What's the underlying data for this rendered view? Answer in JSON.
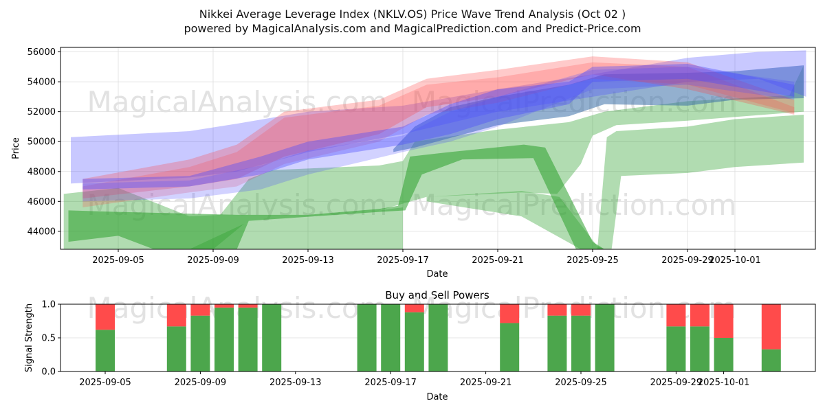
{
  "chart_data": [
    {
      "type": "area",
      "title": "Nikkei Average Leverage Index (NKLV.OS) Price Wave Trend Analysis (Oct 02 )",
      "subtitle": "powered by MagicalAnalysis.com and MagicalPrediction.com and Predict-Price.com",
      "xlabel": "Date",
      "ylabel": "Price",
      "ylim": [
        42800,
        56300
      ],
      "x_origin": "2025-09-05",
      "x_unit": "days since x_origin",
      "xlim": [
        -2.45,
        29.4
      ],
      "xticks": [
        {
          "d": 0,
          "label": "2025-09-05"
        },
        {
          "d": 4,
          "label": "2025-09-09"
        },
        {
          "d": 8,
          "label": "2025-09-13"
        },
        {
          "d": 12,
          "label": "2025-09-17"
        },
        {
          "d": 16,
          "label": "2025-09-21"
        },
        {
          "d": 20,
          "label": "2025-09-25"
        },
        {
          "d": 24,
          "label": "2025-09-29"
        },
        {
          "d": 26,
          "label": "2025-10-01"
        }
      ],
      "yticks": [
        44000,
        46000,
        48000,
        50000,
        52000,
        54000,
        56000
      ],
      "grid": true,
      "bands": [
        {
          "name": "green-band-a",
          "color": "#2ca02c",
          "opacity": 0.37,
          "upper": [
            [
              -2.3,
              46500
            ],
            [
              0,
              46900
            ],
            [
              3,
              45000
            ],
            [
              4.3,
              45100
            ],
            [
              5.5,
              47500
            ],
            [
              6.5,
              48100
            ],
            [
              11,
              48400
            ],
            [
              12,
              48700
            ],
            [
              12.5,
              50000
            ],
            [
              16,
              50800
            ],
            [
              19,
              51300
            ],
            [
              20.5,
              52000
            ],
            [
              24,
              52700
            ],
            [
              28.3,
              53100
            ],
            [
              28.9,
              55100
            ]
          ],
          "lower": [
            [
              28.9,
              52000
            ],
            [
              24,
              51400
            ],
            [
              21,
              51100
            ],
            [
              20,
              50400
            ],
            [
              19.5,
              48500
            ],
            [
              18.5,
              46500
            ],
            [
              17,
              46600
            ],
            [
              13,
              46300
            ],
            [
              11,
              45400
            ],
            [
              5.3,
              44500
            ],
            [
              4,
              42800
            ],
            [
              -2.3,
              42800
            ]
          ]
        },
        {
          "name": "green-band-b",
          "color": "#2ca02c",
          "opacity": 0.37,
          "upper": [
            [
              3,
              42800
            ],
            [
              5.3,
              44500
            ],
            [
              11,
              45400
            ],
            [
              12,
              45600
            ]
          ],
          "lower": [
            [
              12,
              42800
            ]
          ]
        },
        {
          "name": "green-band-c",
          "color": "#2ca02c",
          "opacity": 0.37,
          "upper": [
            [
              13,
              46300
            ],
            [
              17,
              46700
            ],
            [
              18.6,
              46300
            ],
            [
              20.2,
              43000
            ],
            [
              20.5,
              42800
            ]
          ],
          "lower": [
            [
              19.5,
              42800
            ],
            [
              17,
              45000
            ],
            [
              13,
              46000
            ]
          ]
        },
        {
          "name": "green-band-d",
          "color": "#2ca02c",
          "opacity": 0.37,
          "upper": [
            [
              20.2,
              42800
            ],
            [
              20.6,
              50300
            ],
            [
              21,
              50700
            ],
            [
              24,
              51000
            ],
            [
              26,
              51500
            ],
            [
              28.9,
              51800
            ]
          ],
          "lower": [
            [
              28.9,
              48600
            ],
            [
              26,
              48300
            ],
            [
              24,
              47900
            ],
            [
              21.2,
              47700
            ],
            [
              20.8,
              42800
            ]
          ]
        },
        {
          "name": "dark-green-band",
          "color": "#2ca02c",
          "opacity": 0.55,
          "upper": [
            [
              -2.1,
              45400
            ],
            [
              0,
              45300
            ],
            [
              5,
              45100
            ],
            [
              8,
              45100
            ],
            [
              11,
              45500
            ],
            [
              11.8,
              45700
            ],
            [
              12.3,
              49000
            ],
            [
              14,
              49300
            ],
            [
              17.1,
              49800
            ],
            [
              18,
              49600
            ],
            [
              20,
              43300
            ],
            [
              20.5,
              42800
            ]
          ],
          "lower": [
            [
              19.3,
              42800
            ],
            [
              17.5,
              48900
            ],
            [
              14.5,
              48800
            ],
            [
              12.8,
              47800
            ],
            [
              12.1,
              45400
            ],
            [
              11,
              45300
            ],
            [
              5.5,
              44700
            ],
            [
              5,
              42800
            ],
            [
              1.5,
              42800
            ],
            [
              0,
              43700
            ],
            [
              -2.1,
              43300
            ]
          ]
        },
        {
          "name": "teal-band",
          "color": "#3a6fa8",
          "opacity": 0.55,
          "upper": [
            [
              11.6,
              49500
            ],
            [
              12.5,
              51000
            ],
            [
              14,
              52300
            ],
            [
              16,
              53000
            ],
            [
              19,
              53800
            ],
            [
              20.5,
              54500
            ],
            [
              24,
              54600
            ],
            [
              26,
              54700
            ],
            [
              28.9,
              55100
            ]
          ],
          "lower": [
            [
              28.9,
              52900
            ],
            [
              26,
              52800
            ],
            [
              24,
              52400
            ],
            [
              20.5,
              52500
            ],
            [
              19,
              51700
            ],
            [
              16,
              51100
            ],
            [
              12.5,
              49600
            ],
            [
              11.6,
              49300
            ]
          ]
        },
        {
          "name": "blue-band-wide",
          "color": "#4a4aff",
          "opacity": 0.3,
          "upper": [
            [
              -2,
              50300
            ],
            [
              3,
              50700
            ],
            [
              5,
              51200
            ],
            [
              8,
              52000
            ],
            [
              12,
              52400
            ],
            [
              16,
              53500
            ],
            [
              20,
              54500
            ],
            [
              24,
              55600
            ],
            [
              27,
              56000
            ],
            [
              29,
              56100
            ]
          ],
          "lower": [
            [
              29,
              53000
            ],
            [
              27,
              54200
            ],
            [
              24,
              54000
            ],
            [
              20,
              53000
            ],
            [
              16,
              52000
            ],
            [
              12,
              50500
            ],
            [
              8,
              49300
            ],
            [
              5,
              48000
            ],
            [
              3,
              47600
            ],
            [
              -2,
              47200
            ]
          ]
        },
        {
          "name": "red-band-1",
          "color": "#ff4040",
          "opacity": 0.28,
          "upper": [
            [
              -1.5,
              47500
            ],
            [
              3,
              48800
            ],
            [
              5,
              49800
            ],
            [
              7,
              52000
            ],
            [
              11,
              52800
            ],
            [
              13,
              54200
            ],
            [
              16,
              54800
            ],
            [
              20,
              55700
            ],
            [
              24,
              55300
            ],
            [
              28.5,
              52800
            ]
          ],
          "lower": [
            [
              28.5,
              51800
            ],
            [
              24,
              53500
            ],
            [
              20,
              54500
            ],
            [
              16,
              53000
            ],
            [
              13,
              52300
            ],
            [
              11,
              50500
            ],
            [
              7,
              49000
            ],
            [
              5,
              47500
            ],
            [
              3,
              47000
            ],
            [
              -1.5,
              46200
            ]
          ]
        },
        {
          "name": "red-band-2",
          "color": "#ff4040",
          "opacity": 0.22,
          "upper": [
            [
              -1.5,
              47000
            ],
            [
              3,
              48300
            ],
            [
              5,
              49300
            ],
            [
              7,
              51600
            ],
            [
              11,
              52400
            ],
            [
              13,
              53800
            ],
            [
              16,
              54300
            ],
            [
              20,
              55300
            ],
            [
              24,
              55000
            ],
            [
              28.5,
              52300
            ]
          ],
          "lower": [
            [
              28.5,
              51900
            ],
            [
              24,
              53800
            ],
            [
              20,
              54200
            ],
            [
              16,
              52600
            ],
            [
              13,
              51800
            ],
            [
              11,
              50000
            ],
            [
              7,
              48500
            ],
            [
              5,
              47000
            ],
            [
              3,
              46600
            ],
            [
              -1.5,
              45600
            ]
          ]
        },
        {
          "name": "blue-band-dark",
          "color": "#4a4aff",
          "opacity": 0.38,
          "upper": [
            [
              -1.5,
              47500
            ],
            [
              3,
              47700
            ],
            [
              6,
              49000
            ],
            [
              8,
              50000
            ],
            [
              12,
              51000
            ],
            [
              14,
              52500
            ],
            [
              16,
              53500
            ],
            [
              19,
              54000
            ],
            [
              20,
              55000
            ],
            [
              24,
              55200
            ],
            [
              28.5,
              53800
            ]
          ],
          "lower": [
            [
              28.5,
              53000
            ],
            [
              24,
              54200
            ],
            [
              20,
              54000
            ],
            [
              19,
              52500
            ],
            [
              16,
              51500
            ],
            [
              14,
              50500
            ],
            [
              12,
              49800
            ],
            [
              8,
              48800
            ],
            [
              6,
              47800
            ],
            [
              3,
              47000
            ],
            [
              -1.5,
              46800
            ]
          ]
        },
        {
          "name": "blue-band-3",
          "color": "#4a4aff",
          "opacity": 0.25,
          "upper": [
            [
              -1.5,
              47200
            ],
            [
              3,
              47400
            ],
            [
              6,
              48400
            ],
            [
              8,
              49400
            ],
            [
              12,
              50400
            ],
            [
              14,
              52000
            ],
            [
              16,
              53000
            ],
            [
              20,
              54800
            ],
            [
              24,
              55000
            ],
            [
              28.5,
              54000
            ]
          ],
          "lower": [
            [
              28.5,
              52800
            ],
            [
              24,
              53800
            ],
            [
              20,
              53500
            ],
            [
              16,
              51000
            ],
            [
              14,
              50000
            ],
            [
              12,
              49300
            ],
            [
              8,
              47800
            ],
            [
              6,
              46800
            ],
            [
              3,
              46200
            ],
            [
              -1.5,
              46000
            ]
          ]
        }
      ]
    },
    {
      "type": "bar",
      "title": "Buy and Sell Powers",
      "xlabel": "Date",
      "ylabel": "Signal Strength",
      "ylim": [
        0,
        1
      ],
      "yticks": [
        "0.0",
        "0.5",
        "1.0"
      ],
      "x_origin": "2025-09-05",
      "xticks": [
        {
          "d": 0,
          "label": "2025-09-05"
        },
        {
          "d": 4,
          "label": "2025-09-09"
        },
        {
          "d": 8,
          "label": "2025-09-13"
        },
        {
          "d": 12,
          "label": "2025-09-17"
        },
        {
          "d": 16,
          "label": "2025-09-21"
        },
        {
          "d": 20,
          "label": "2025-09-25"
        },
        {
          "d": 24,
          "label": "2025-09-29"
        },
        {
          "d": 26,
          "label": "2025-10-01"
        }
      ],
      "categories": [
        "2025-09-05",
        "2025-09-08",
        "2025-09-09",
        "2025-09-10",
        "2025-09-11",
        "2025-09-12",
        "2025-09-16",
        "2025-09-17",
        "2025-09-18",
        "2025-09-19",
        "2025-09-22",
        "2025-09-24",
        "2025-09-25",
        "2025-09-26",
        "2025-09-29",
        "2025-09-30",
        "2025-10-01",
        "2025-10-03"
      ],
      "days": [
        0,
        3,
        4,
        5,
        6,
        7,
        11,
        12,
        13,
        14,
        17,
        19,
        20,
        21,
        24,
        25,
        26,
        28
      ],
      "series": [
        {
          "name": "Buy",
          "color": "#4ca64c",
          "values": [
            0.62,
            0.67,
            0.83,
            0.95,
            0.95,
            1.0,
            1.0,
            1.0,
            0.88,
            1.0,
            0.72,
            0.83,
            0.83,
            1.0,
            0.67,
            0.67,
            0.5,
            0.33
          ]
        },
        {
          "name": "Sell",
          "color": "#ff4b4b",
          "values": [
            0.38,
            0.33,
            0.17,
            0.05,
            0.05,
            0.0,
            0.0,
            0.0,
            0.12,
            0.0,
            0.28,
            0.17,
            0.17,
            0.0,
            0.33,
            0.33,
            0.5,
            0.67
          ]
        }
      ]
    }
  ],
  "watermarks": [
    "MagicalAnalysis.com",
    "MagicalPrediction.com"
  ]
}
